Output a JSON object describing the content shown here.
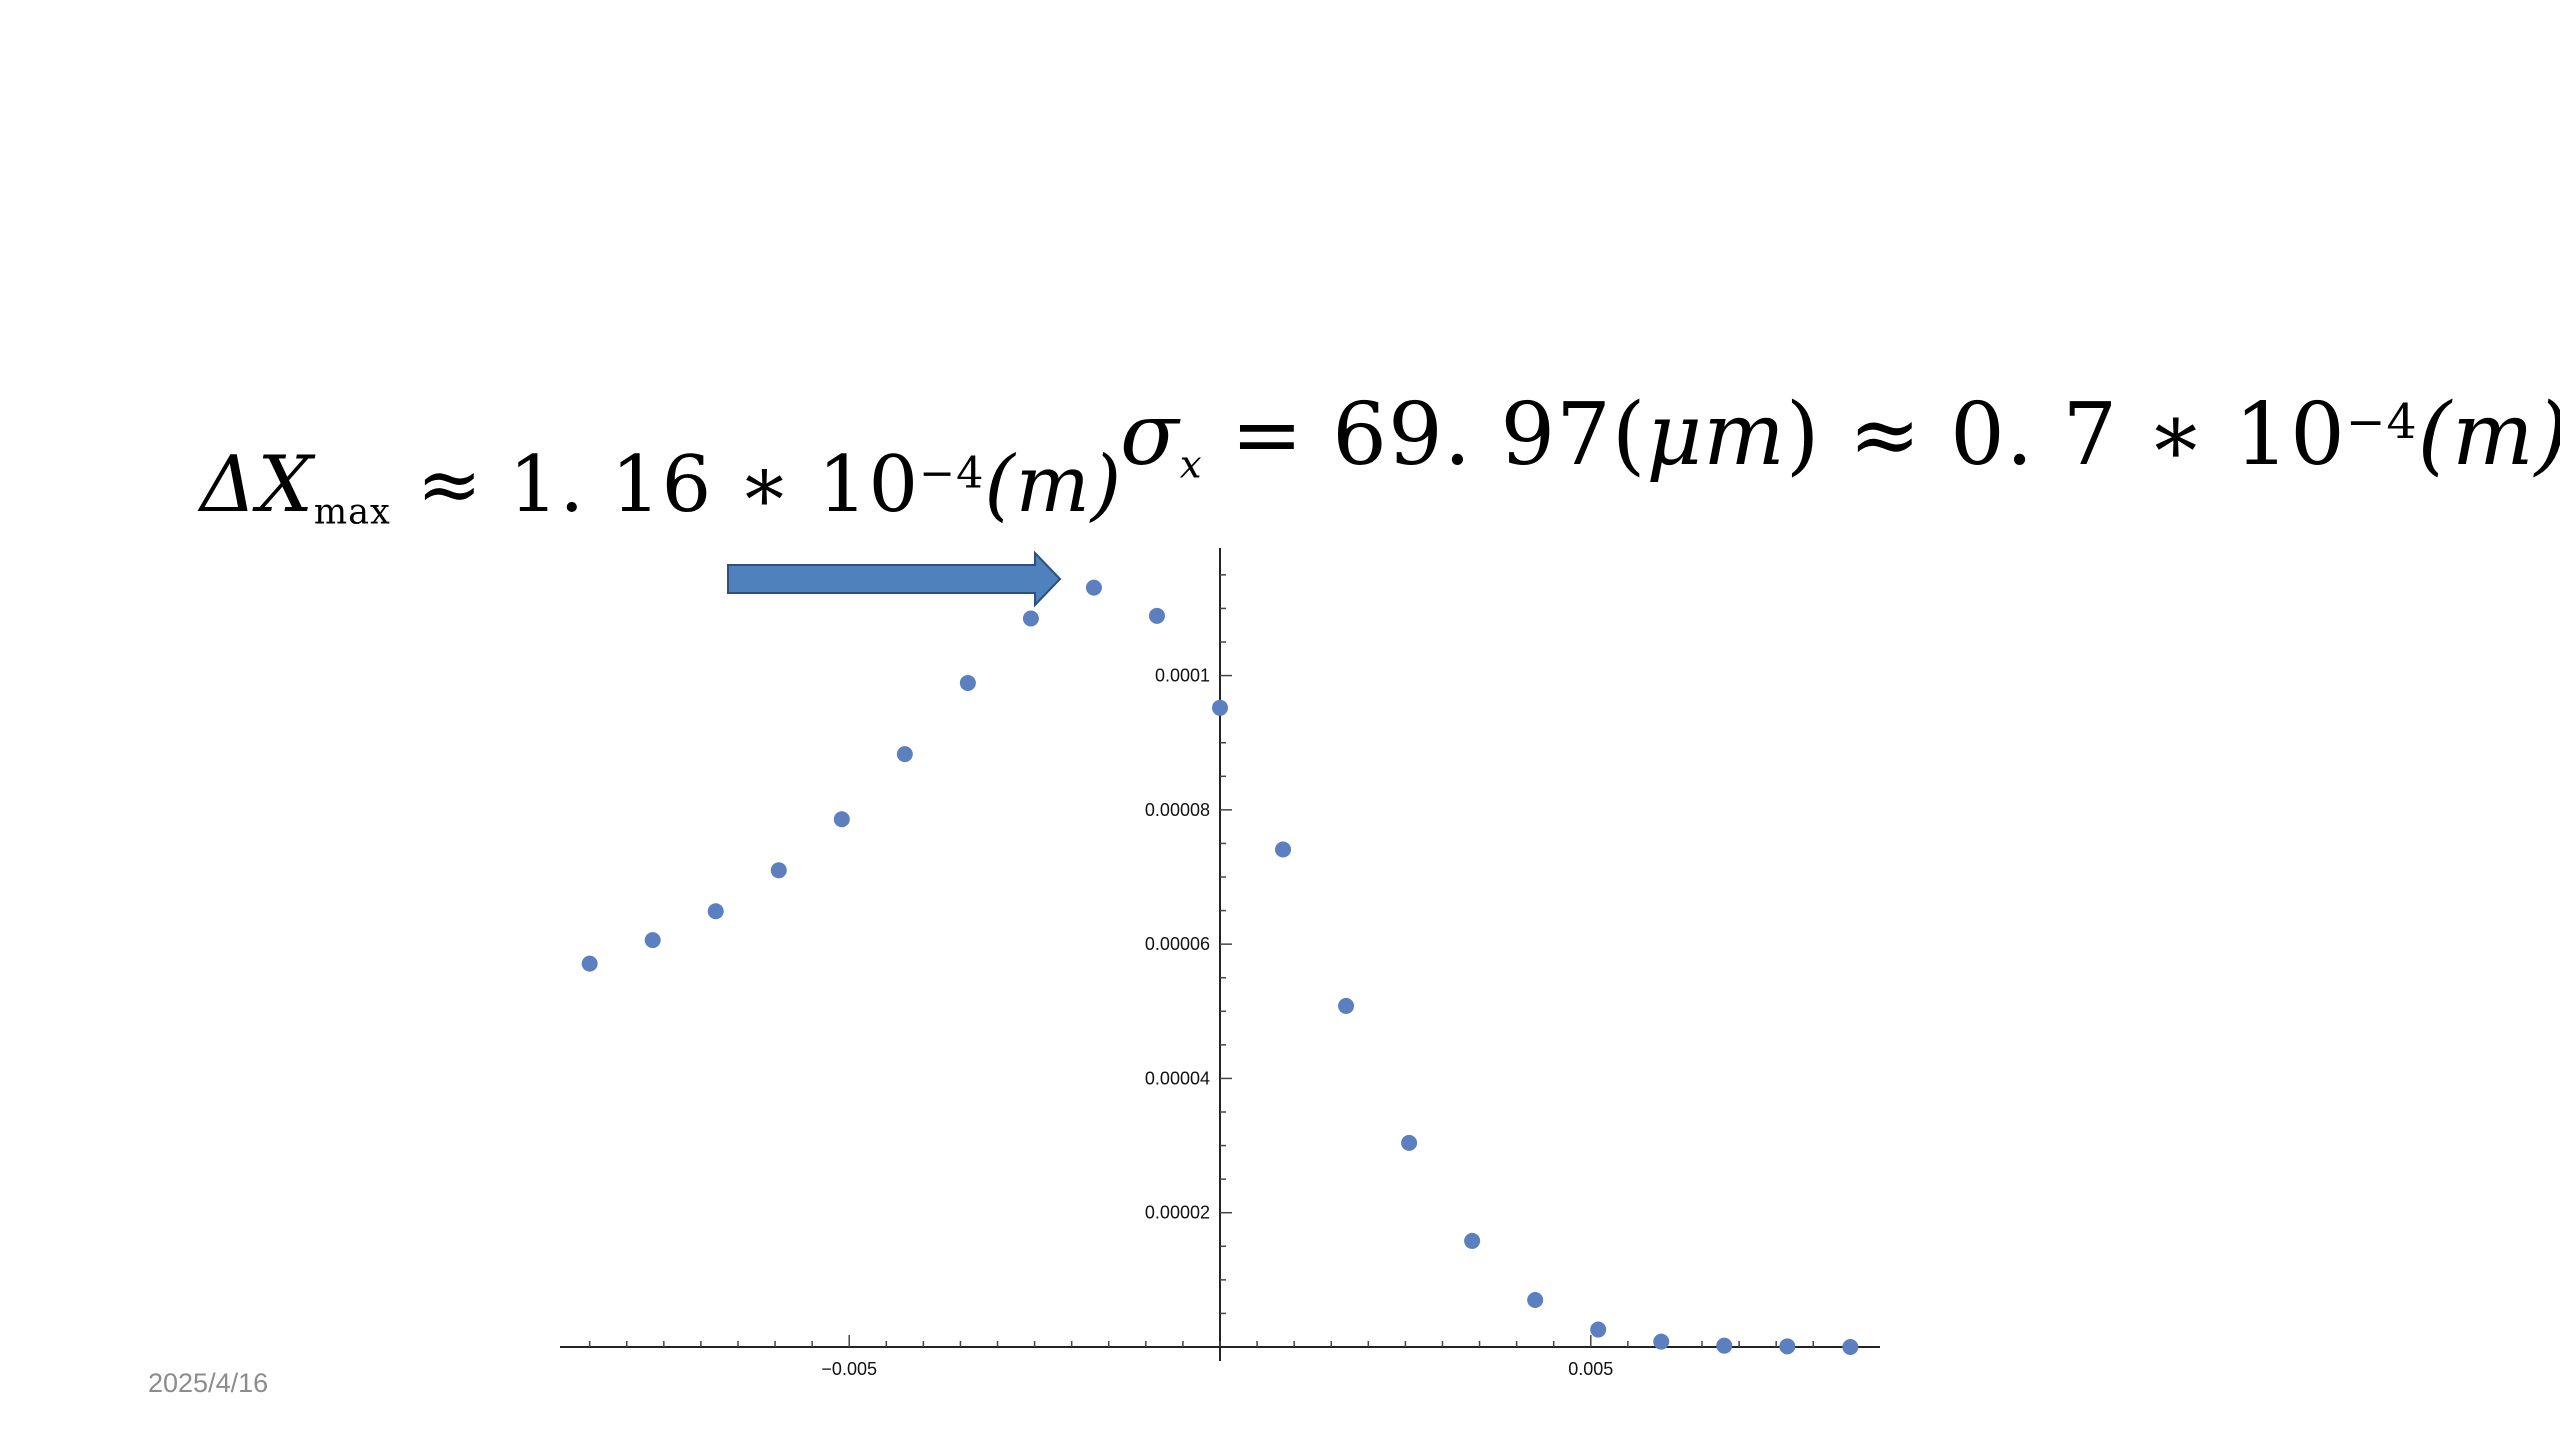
{
  "slide": {
    "date": "2025/4/16"
  },
  "annotations": {
    "delta_x": {
      "symbol": "ΔX",
      "subscript": "max",
      "relation": "≈",
      "mantissa": "1. 16",
      "times": "∗",
      "base": "10",
      "exponent": "−4",
      "unit": "(m)"
    },
    "sigma": {
      "symbol": "σ",
      "subscript": "x",
      "equals": "=",
      "value": "69. 97",
      "unit_open": "(",
      "unit": "μm",
      "unit_close": ")",
      "relation": "≈",
      "mantissa": "0. 7",
      "times": "∗",
      "base": "10",
      "exponent": "−4",
      "unit2": "(m)"
    },
    "arrow_color": "#4f81bd"
  },
  "chart_data": {
    "type": "scatter",
    "title": "",
    "xlabel": "",
    "ylabel": "",
    "xlim": [
      -0.0089,
      0.0089
    ],
    "ylim": [
      0,
      0.000119
    ],
    "x_ticks": [
      {
        "value": -0.005,
        "label": "−0.005"
      },
      {
        "value": 0.005,
        "label": "0.005"
      }
    ],
    "y_ticks": [
      {
        "value": 2e-05,
        "label": "0.00002"
      },
      {
        "value": 4e-05,
        "label": "0.00004"
      },
      {
        "value": 6e-05,
        "label": "0.00006"
      },
      {
        "value": 8e-05,
        "label": "0.00008"
      },
      {
        "value": 0.0001,
        "label": "0.0001"
      }
    ],
    "grid": false,
    "point_color": "#5b7fbf",
    "series": [
      {
        "x": [
          -0.0085,
          -0.00765,
          -0.0068,
          -0.00595,
          -0.0051,
          -0.00425,
          -0.0034,
          -0.00255,
          -0.0017,
          -0.00085,
          0.0,
          0.00085,
          0.0017,
          0.00255,
          0.0034,
          0.00425,
          0.0051,
          0.00595,
          0.0068,
          0.00765,
          0.0085
        ],
        "y": [
          5.71e-05,
          6.06e-05,
          6.49e-05,
          7.1e-05,
          7.86e-05,
          8.83e-05,
          9.89e-05,
          0.0001085,
          0.0001131,
          0.0001089,
          9.52e-05,
          7.41e-05,
          5.08e-05,
          3.04e-05,
          1.58e-05,
          7e-06,
          2.6e-06,
          8e-07,
          2e-07,
          1e-07,
          0.0
        ]
      }
    ]
  }
}
